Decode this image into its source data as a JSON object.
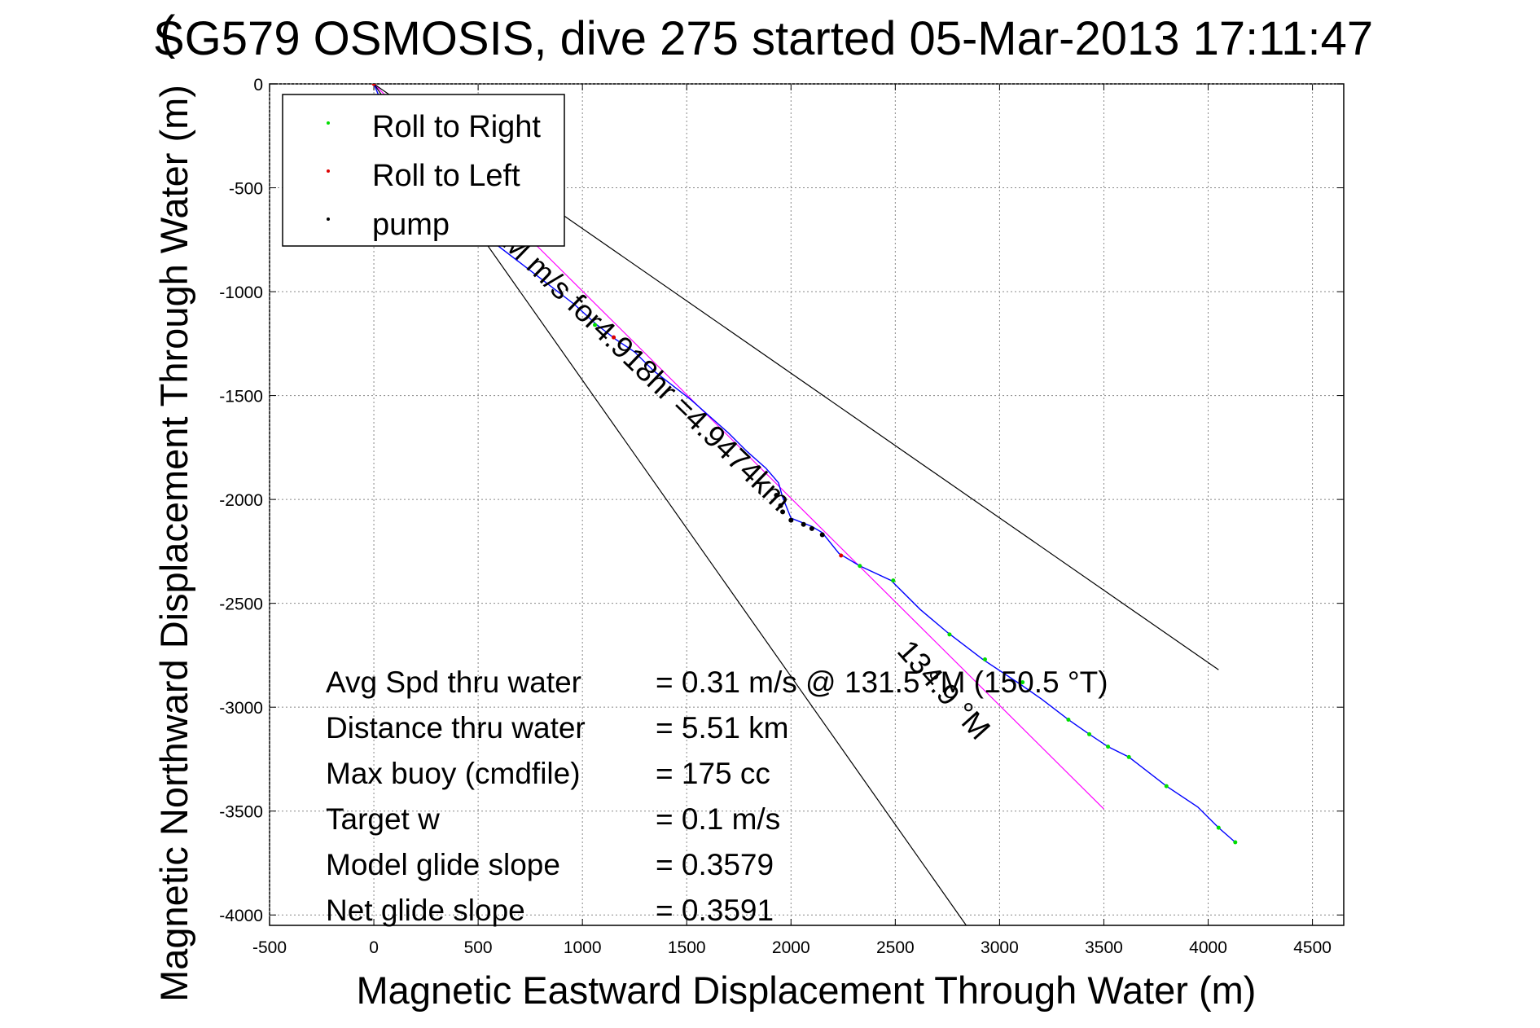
{
  "chart_data": {
    "type": "line",
    "title": "SG579 OSMOSIS, dive 275 started 05-Mar-2013 17:11:47",
    "title_overlap_glyph": "(",
    "xlabel": "Magnetic Eastward Displacement Through Water (m)",
    "ylabel": "Magnetic Northward Displacement Through Water (m)",
    "xlim": [
      -500,
      4650
    ],
    "ylim": [
      -4050,
      0
    ],
    "xticks": [
      "-500",
      "0",
      "500",
      "1000",
      "1500",
      "2000",
      "2500",
      "3000",
      "3500",
      "4000",
      "4500"
    ],
    "yticks": [
      "0",
      "-500",
      "-1000",
      "-1500",
      "-2000",
      "-2500",
      "-3000",
      "-3500",
      "-4000"
    ],
    "grid": true,
    "legend_position": "top-left",
    "legend": [
      {
        "label": "Roll to Right",
        "color": "#00dd00"
      },
      {
        "label": "Roll to Left",
        "color": "#dd0000"
      },
      {
        "label": "pump",
        "color": "#000000"
      }
    ],
    "series": [
      {
        "name": "track",
        "color": "#0000ff",
        "x": [
          0,
          50,
          120,
          220,
          330,
          450,
          570,
          700,
          830,
          960,
          1070,
          1160,
          1250,
          1340,
          1430,
          1520,
          1610,
          1700,
          1790,
          1880,
          1940,
          1960,
          1980,
          2000,
          2050,
          2100,
          2150,
          2230,
          2330,
          2480,
          2620,
          2750,
          2920,
          3100,
          3200,
          3330,
          3430,
          3520,
          3620,
          3800,
          3950,
          4050,
          4130
        ],
        "y": [
          0,
          -120,
          -260,
          -400,
          -540,
          -660,
          -760,
          -860,
          -960,
          -1060,
          -1160,
          -1230,
          -1290,
          -1380,
          -1450,
          -1520,
          -1600,
          -1680,
          -1770,
          -1850,
          -1920,
          -1990,
          -2040,
          -2090,
          -2110,
          -2130,
          -2160,
          -2260,
          -2320,
          -2390,
          -2530,
          -2640,
          -2770,
          -2890,
          -2960,
          -3060,
          -3130,
          -3190,
          -3240,
          -3380,
          -3480,
          -3580,
          -3650
        ]
      }
    ],
    "roll_right_points": [
      {
        "x": 1060,
        "y": -1160
      },
      {
        "x": 2330,
        "y": -2320
      },
      {
        "x": 2490,
        "y": -2390
      },
      {
        "x": 2760,
        "y": -2650
      },
      {
        "x": 2930,
        "y": -2770
      },
      {
        "x": 3110,
        "y": -2880
      },
      {
        "x": 3330,
        "y": -3060
      },
      {
        "x": 3430,
        "y": -3130
      },
      {
        "x": 3520,
        "y": -3190
      },
      {
        "x": 3620,
        "y": -3240
      },
      {
        "x": 3800,
        "y": -3380
      },
      {
        "x": 4050,
        "y": -3580
      },
      {
        "x": 4130,
        "y": -3650
      }
    ],
    "roll_left_points": [
      {
        "x": 0,
        "y": 0
      },
      {
        "x": 1150,
        "y": -1220
      },
      {
        "x": 2240,
        "y": -2270
      }
    ],
    "pump_points": [
      {
        "x": 1930,
        "y": -1980
      },
      {
        "x": 1950,
        "y": -2030
      },
      {
        "x": 1960,
        "y": -2060
      },
      {
        "x": 2000,
        "y": -2100
      },
      {
        "x": 2060,
        "y": -2120
      },
      {
        "x": 2100,
        "y": -2140
      },
      {
        "x": 2150,
        "y": -2170
      }
    ],
    "reference_lines": [
      {
        "name": "heading-line",
        "color": "#ff00ff",
        "x": [
          0,
          3500
        ],
        "y": [
          0,
          -3490
        ]
      },
      {
        "name": "cone-upper",
        "color": "#000000",
        "x": [
          0,
          4050
        ],
        "y": [
          0,
          -2820
        ]
      },
      {
        "name": "cone-lower",
        "color": "#000000",
        "x": [
          0,
          2840
        ],
        "y": [
          0,
          -4050
        ]
      }
    ],
    "annotations": {
      "heading_line_label": "M      m/s for4.918hr =4.9474km",
      "heading_deg_label": "134.9 °M"
    },
    "stats": [
      {
        "label": "Avg Spd thru water",
        "value": "=  0.31 m/s @ 131.5 °M (150.5 °T)"
      },
      {
        "label": "Distance thru water",
        "value": "=  5.51 km"
      },
      {
        "label": "Max buoy (cmdfile)",
        "value": "= 175 cc"
      },
      {
        "label": "Target w",
        "value": "= 0.1 m/s"
      },
      {
        "label": "Model glide slope",
        "value": "= 0.3579"
      },
      {
        "label": "Net glide slope",
        "value": "= 0.3591"
      }
    ]
  }
}
